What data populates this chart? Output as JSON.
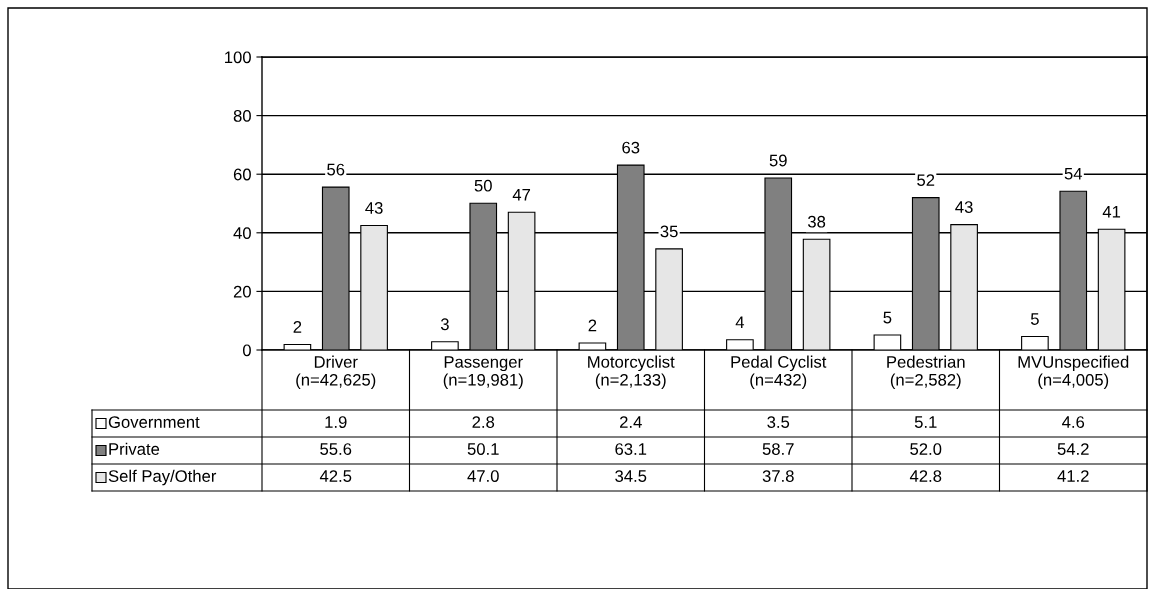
{
  "chart_data": {
    "type": "bar",
    "categories": [
      "Driver\n(n=42,625)",
      "Passenger\n(n=19,981)",
      "Motorcyclist\n(n=2,133)",
      "Pedal Cyclist\n(n=432)",
      "Pedestrian\n(n=2,582)",
      "MVUnspecified\n(n=4,005)"
    ],
    "series": [
      {
        "name": "Government",
        "color": "#ffffff",
        "values": [
          1.9,
          2.8,
          2.4,
          3.5,
          5.1,
          4.6
        ],
        "value_labels": [
          "2",
          "3",
          "2",
          "4",
          "5",
          "5"
        ]
      },
      {
        "name": "Private",
        "color": "#808080",
        "values": [
          55.6,
          50.1,
          63.1,
          58.7,
          52.0,
          54.2
        ],
        "value_labels": [
          "56",
          "50",
          "63",
          "59",
          "52",
          "54"
        ]
      },
      {
        "name": "Self Pay/Other",
        "color": "#e6e6e6",
        "values": [
          42.5,
          47.0,
          34.5,
          37.8,
          42.8,
          41.2
        ],
        "value_labels": [
          "43",
          "47",
          "35",
          "38",
          "43",
          "41"
        ]
      }
    ],
    "annotations": [
      "1.9",
      "2.8",
      "2.4",
      "3.5",
      "5.1",
      "4.6",
      "55.6",
      "50.1",
      "63.1",
      "58.7",
      "52.0",
      "54.2",
      "42.5",
      "47.0",
      "34.5",
      "37.8",
      "42.8",
      "41.2"
    ],
    "ylim": [
      0,
      100
    ],
    "yticks": [
      0,
      20,
      40,
      60,
      80,
      100
    ],
    "grid": "y",
    "legend": "bottom"
  }
}
